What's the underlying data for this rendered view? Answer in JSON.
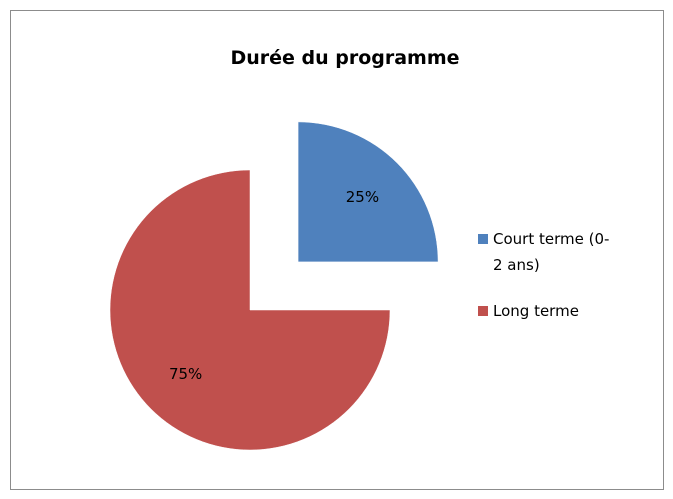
{
  "chart_data": {
    "type": "pie",
    "title": "Durée du programme",
    "categories": [
      "Court terme (0-2 ans)",
      "Long terme"
    ],
    "values": [
      25,
      75
    ],
    "value_labels": [
      "25%",
      "75%"
    ],
    "colors": [
      "#4f81bd",
      "#c0504d"
    ],
    "legend": "right"
  }
}
